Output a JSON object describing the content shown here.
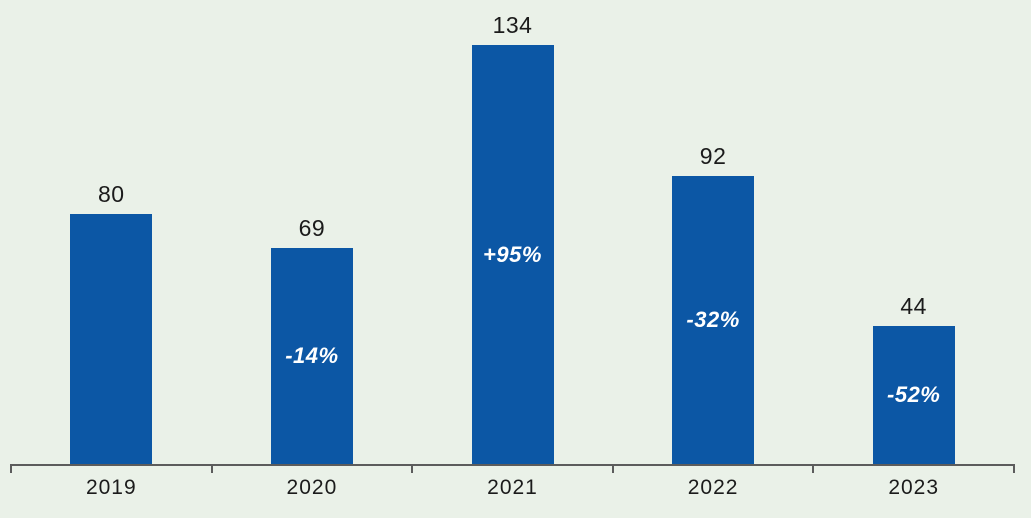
{
  "chart_data": {
    "type": "bar",
    "categories": [
      "2019",
      "2020",
      "2021",
      "2022",
      "2023"
    ],
    "values": [
      80,
      69,
      134,
      92,
      44
    ],
    "value_labels": [
      "80",
      "69",
      "134",
      "92",
      "44"
    ],
    "pct_change_labels": [
      null,
      "-14%",
      "+95%",
      "-32%",
      "-52%"
    ],
    "title": "",
    "xlabel": "",
    "ylabel": "",
    "ylim": [
      0,
      140
    ],
    "grid": false,
    "legend_position": "none",
    "colors": {
      "background": "#eaf1e8",
      "bar": "#0c57a5",
      "axis": "#5c5c5c",
      "value_label": "#1b1b1b",
      "year_label": "#1b1b1b",
      "pct_label": "#ffffff"
    }
  }
}
